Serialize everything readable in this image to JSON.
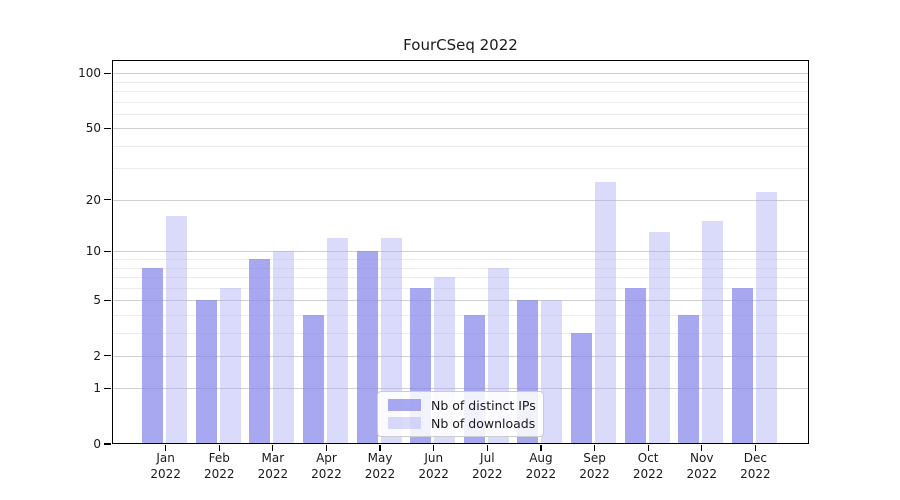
{
  "chart_data": {
    "type": "bar",
    "title": "FourCSeq 2022",
    "months": [
      "Jan",
      "Feb",
      "Mar",
      "Apr",
      "May",
      "Jun",
      "Jul",
      "Aug",
      "Sep",
      "Oct",
      "Nov",
      "Dec"
    ],
    "year": "2022",
    "series": [
      {
        "name": "Nb of distinct IPs",
        "values": [
          8,
          5,
          9,
          4,
          10,
          6,
          4,
          5,
          3,
          6,
          4,
          6
        ],
        "color": "rgba(134,134,236,0.72)"
      },
      {
        "name": "Nb of downloads",
        "values": [
          16,
          6,
          10,
          12,
          12,
          7,
          8,
          5,
          25,
          13,
          15,
          22
        ],
        "color": "rgba(168,168,246,0.42)"
      }
    ],
    "xlabel": "",
    "ylabel": "",
    "yscale": "log1p",
    "ylim": [
      0,
      117
    ],
    "yticks_major": [
      0,
      1,
      2,
      5,
      10,
      20,
      50,
      100
    ],
    "yticks_minor": [
      3,
      4,
      6,
      7,
      8,
      9,
      30,
      40,
      60,
      70,
      80,
      90
    ],
    "grid": true,
    "legend_position": "lower-center",
    "colors": {
      "grid_major": "#cfcfcf",
      "grid_minor": "#ececec",
      "spine": "#000000",
      "text": "#1a1a1a"
    }
  }
}
